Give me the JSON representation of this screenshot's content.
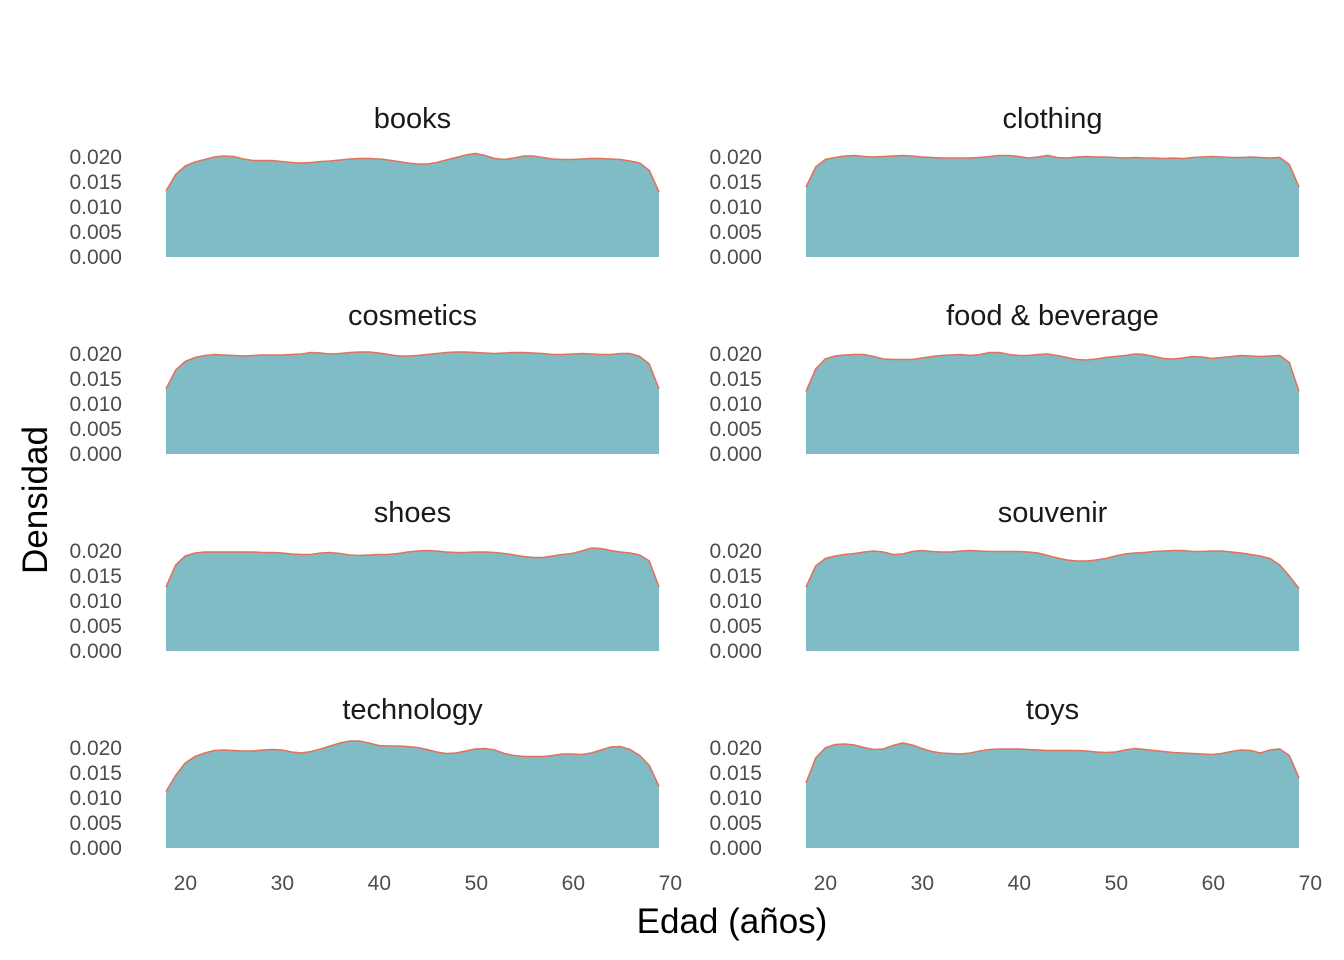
{
  "colors": {
    "fill": "#80bcc6",
    "outline": "#e0735c"
  },
  "chart_data": {
    "type": "area",
    "facet_layout": "4 rows x 2 columns",
    "xlabel": "Edad (años)",
    "ylabel": "Densidad",
    "xlim": [
      18,
      69
    ],
    "x_ticks": [
      20,
      30,
      40,
      50,
      60,
      70
    ],
    "ylim": [
      0,
      0.021
    ],
    "y_ticks": [
      "0.000",
      "0.005",
      "0.010",
      "0.015",
      "0.020"
    ],
    "grid": false,
    "x": [
      18,
      19,
      20,
      21,
      22,
      23,
      24,
      25,
      26,
      27,
      28,
      29,
      30,
      31,
      32,
      33,
      34,
      35,
      36,
      37,
      38,
      39,
      40,
      41,
      42,
      43,
      44,
      45,
      46,
      47,
      48,
      49,
      50,
      51,
      52,
      53,
      54,
      55,
      56,
      57,
      58,
      59,
      60,
      61,
      62,
      63,
      64,
      65,
      66,
      67,
      68,
      69
    ],
    "panels": [
      {
        "name": "books",
        "values": [
          0.0132,
          0.0165,
          0.0182,
          0.019,
          0.0195,
          0.02,
          0.0202,
          0.0201,
          0.0196,
          0.0193,
          0.0193,
          0.0193,
          0.0191,
          0.0189,
          0.0188,
          0.0189,
          0.0191,
          0.0192,
          0.0194,
          0.0196,
          0.0197,
          0.0197,
          0.0196,
          0.0194,
          0.0191,
          0.0188,
          0.0186,
          0.0186,
          0.0189,
          0.0194,
          0.0199,
          0.0204,
          0.0207,
          0.0203,
          0.0197,
          0.0195,
          0.0198,
          0.0202,
          0.0202,
          0.0199,
          0.0196,
          0.0195,
          0.0195,
          0.0196,
          0.0197,
          0.0197,
          0.0196,
          0.0195,
          0.0192,
          0.0188,
          0.0173,
          0.013
        ]
      },
      {
        "name": "clothing",
        "values": [
          0.014,
          0.018,
          0.0195,
          0.0199,
          0.0202,
          0.0203,
          0.0201,
          0.02,
          0.0201,
          0.0202,
          0.0203,
          0.0202,
          0.02,
          0.0199,
          0.0198,
          0.0198,
          0.0198,
          0.0198,
          0.0199,
          0.0201,
          0.0203,
          0.0203,
          0.0201,
          0.0198,
          0.02,
          0.0203,
          0.0199,
          0.0198,
          0.02,
          0.0201,
          0.02,
          0.02,
          0.0199,
          0.0198,
          0.0199,
          0.0198,
          0.0198,
          0.0197,
          0.0198,
          0.0197,
          0.0199,
          0.02,
          0.0201,
          0.02,
          0.0199,
          0.0199,
          0.02,
          0.0199,
          0.0198,
          0.0199,
          0.0185,
          0.014
        ]
      },
      {
        "name": "cosmetics",
        "values": [
          0.013,
          0.0168,
          0.0185,
          0.0193,
          0.0197,
          0.0199,
          0.0198,
          0.0197,
          0.0196,
          0.0197,
          0.0198,
          0.0198,
          0.0198,
          0.0199,
          0.02,
          0.0203,
          0.0202,
          0.02,
          0.0201,
          0.0203,
          0.0204,
          0.0204,
          0.0202,
          0.0199,
          0.0196,
          0.0196,
          0.0197,
          0.0199,
          0.0201,
          0.0203,
          0.0204,
          0.0204,
          0.0203,
          0.0202,
          0.0201,
          0.0202,
          0.0203,
          0.0203,
          0.0202,
          0.0201,
          0.0199,
          0.0199,
          0.02,
          0.0201,
          0.02,
          0.0199,
          0.0199,
          0.0201,
          0.0201,
          0.0195,
          0.018,
          0.013
        ]
      },
      {
        "name": "food & beverage",
        "values": [
          0.0125,
          0.017,
          0.019,
          0.0196,
          0.0198,
          0.0199,
          0.0199,
          0.0195,
          0.019,
          0.0189,
          0.0189,
          0.0189,
          0.0192,
          0.0195,
          0.0197,
          0.0198,
          0.0199,
          0.0197,
          0.0199,
          0.0203,
          0.0203,
          0.0199,
          0.0197,
          0.0197,
          0.0199,
          0.02,
          0.0197,
          0.0193,
          0.0189,
          0.0188,
          0.019,
          0.0193,
          0.0195,
          0.0197,
          0.02,
          0.0199,
          0.0195,
          0.0191,
          0.019,
          0.0192,
          0.0195,
          0.0194,
          0.0191,
          0.0193,
          0.0195,
          0.0197,
          0.0196,
          0.0195,
          0.0196,
          0.0197,
          0.0183,
          0.0125
        ]
      },
      {
        "name": "shoes",
        "values": [
          0.0128,
          0.0172,
          0.019,
          0.0196,
          0.0198,
          0.0198,
          0.0198,
          0.0198,
          0.0198,
          0.0198,
          0.0197,
          0.0197,
          0.0196,
          0.0194,
          0.0193,
          0.0193,
          0.0196,
          0.0197,
          0.0195,
          0.0192,
          0.0191,
          0.0192,
          0.0193,
          0.0193,
          0.0195,
          0.0198,
          0.02,
          0.0201,
          0.02,
          0.0198,
          0.0197,
          0.0197,
          0.0198,
          0.0198,
          0.0197,
          0.0195,
          0.0192,
          0.0189,
          0.0187,
          0.0187,
          0.019,
          0.0193,
          0.0195,
          0.02,
          0.0206,
          0.0205,
          0.0201,
          0.0198,
          0.0196,
          0.0192,
          0.018,
          0.0128
        ]
      },
      {
        "name": "souvenir",
        "values": [
          0.0128,
          0.017,
          0.0185,
          0.019,
          0.0193,
          0.0195,
          0.0198,
          0.02,
          0.0198,
          0.0193,
          0.0194,
          0.0199,
          0.0201,
          0.0199,
          0.0198,
          0.0198,
          0.02,
          0.0201,
          0.02,
          0.0199,
          0.0199,
          0.0199,
          0.0199,
          0.0198,
          0.0196,
          0.0191,
          0.0186,
          0.0182,
          0.018,
          0.018,
          0.0182,
          0.0185,
          0.019,
          0.0194,
          0.0196,
          0.0197,
          0.0199,
          0.02,
          0.0201,
          0.0201,
          0.0199,
          0.0199,
          0.02,
          0.02,
          0.0198,
          0.0196,
          0.0193,
          0.019,
          0.0185,
          0.0172,
          0.015,
          0.0125
        ]
      },
      {
        "name": "technology",
        "values": [
          0.0113,
          0.0145,
          0.017,
          0.0183,
          0.019,
          0.0195,
          0.0196,
          0.0195,
          0.0194,
          0.0194,
          0.0196,
          0.0197,
          0.0196,
          0.0192,
          0.019,
          0.0193,
          0.0198,
          0.0204,
          0.021,
          0.0214,
          0.0214,
          0.021,
          0.0205,
          0.0204,
          0.0204,
          0.0203,
          0.0201,
          0.0197,
          0.0192,
          0.0189,
          0.019,
          0.0194,
          0.0198,
          0.0199,
          0.0196,
          0.0189,
          0.0185,
          0.0183,
          0.0183,
          0.0183,
          0.0185,
          0.0188,
          0.0188,
          0.0187,
          0.019,
          0.0196,
          0.0202,
          0.0203,
          0.0197,
          0.0185,
          0.0165,
          0.0123
        ]
      },
      {
        "name": "toys",
        "values": [
          0.013,
          0.018,
          0.02,
          0.0207,
          0.0208,
          0.0206,
          0.0201,
          0.0197,
          0.0198,
          0.0205,
          0.021,
          0.0206,
          0.0199,
          0.0193,
          0.019,
          0.0189,
          0.0188,
          0.019,
          0.0194,
          0.0197,
          0.0198,
          0.0198,
          0.0198,
          0.0197,
          0.0196,
          0.0195,
          0.0195,
          0.0195,
          0.0195,
          0.0194,
          0.0192,
          0.0191,
          0.0192,
          0.0196,
          0.0199,
          0.0197,
          0.0195,
          0.0193,
          0.0191,
          0.019,
          0.0189,
          0.0188,
          0.0187,
          0.0189,
          0.0193,
          0.0196,
          0.0195,
          0.019,
          0.0196,
          0.0198,
          0.0185,
          0.014
        ]
      }
    ]
  }
}
